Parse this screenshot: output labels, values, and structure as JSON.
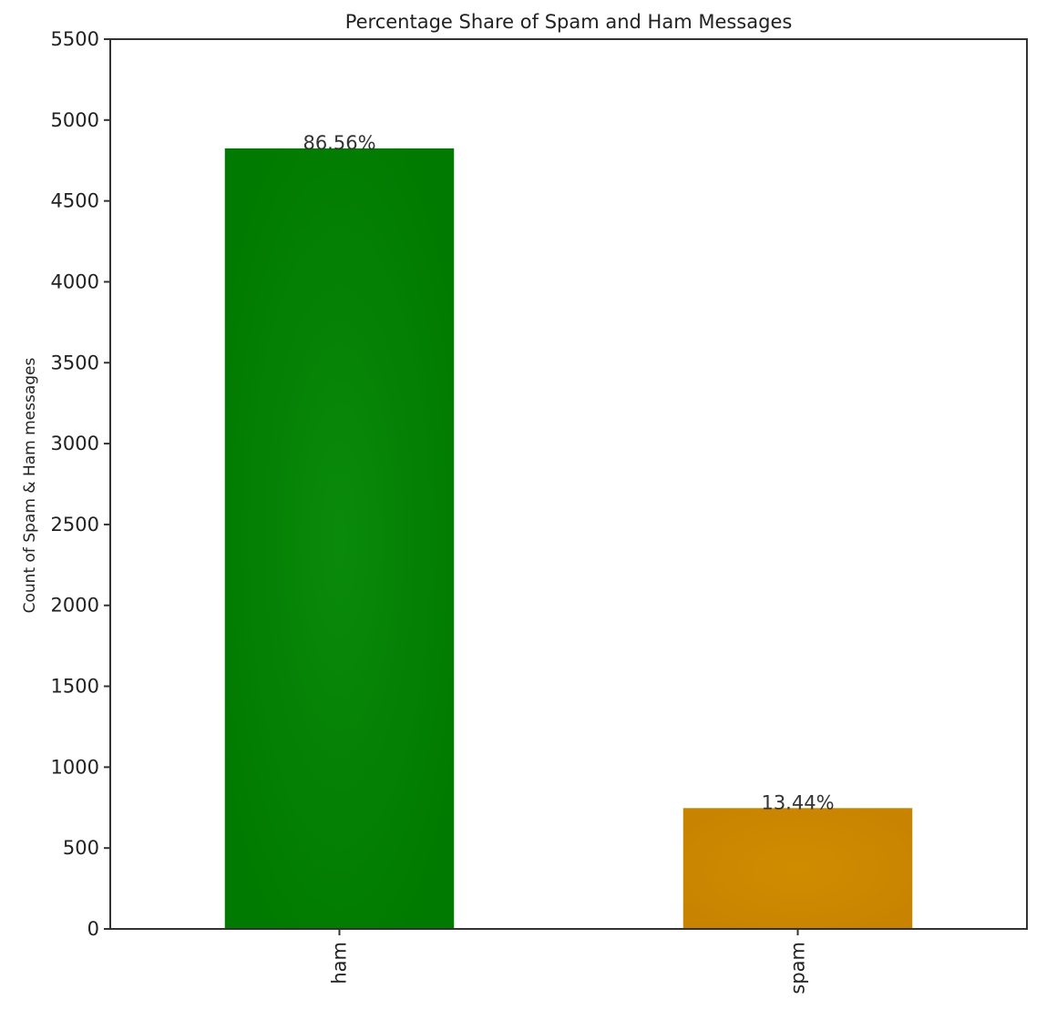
{
  "chart_data": {
    "type": "bar",
    "title": "Percentage Share of Spam and Ham Messages",
    "xlabel": "",
    "ylabel": "Count of Spam & Ham messages",
    "categories": [
      "ham",
      "spam"
    ],
    "values": [
      4825,
      747
    ],
    "data_labels": [
      "86.56%",
      "13.44%"
    ],
    "colors": [
      "#007f00",
      "#cc8800"
    ],
    "ylim": [
      0,
      5500
    ],
    "yticks": [
      0,
      500,
      1000,
      1500,
      2000,
      2500,
      3000,
      3500,
      4000,
      4500,
      5000,
      5500
    ],
    "grid": false,
    "legend": "none"
  }
}
